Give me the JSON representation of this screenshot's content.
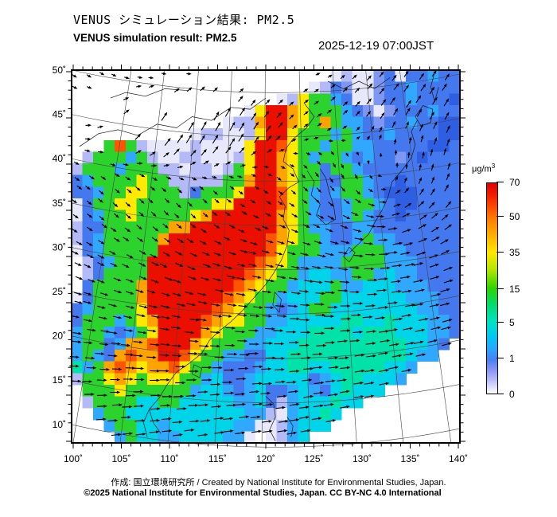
{
  "header": {
    "title_jp": "VENUS シミュレーション結果: PM2.5",
    "title_en": "VENUS simulation result: PM2.5",
    "timestamp": "2025-12-19 07:00JST"
  },
  "footer": {
    "credit": "作成: 国立環境研究所 / Created by National Institute for Environmental Studies, Japan.",
    "license": "©2025 National Institute for Environmental Studies, Japan. CC BY-NC 4.0 International"
  },
  "colorbar": {
    "unit_prefix": "μg/m",
    "unit_sup": "3",
    "ticks": [
      {
        "label": "70",
        "f": 0.0
      },
      {
        "label": "50",
        "f": 0.162
      },
      {
        "label": "35",
        "f": 0.332
      },
      {
        "label": "15",
        "f": 0.502
      },
      {
        "label": "5",
        "f": 0.66
      },
      {
        "label": "1",
        "f": 0.83
      },
      {
        "label": "0",
        "f": 1.0
      }
    ],
    "gradient": [
      [
        "0%",
        "#dd0300"
      ],
      [
        "6%",
        "#f32000"
      ],
      [
        "13%",
        "#ff5a00"
      ],
      [
        "17%",
        "#ff7e00"
      ],
      [
        "25%",
        "#ffb200"
      ],
      [
        "33%",
        "#ffe800"
      ],
      [
        "41%",
        "#b4e600"
      ],
      [
        "50%",
        "#2ed400"
      ],
      [
        "58%",
        "#00dc72"
      ],
      [
        "66%",
        "#00e2c4"
      ],
      [
        "73%",
        "#00c8f4"
      ],
      [
        "79%",
        "#2ba4ff"
      ],
      [
        "84%",
        "#4a80f2"
      ],
      [
        "89%",
        "#8a97f3"
      ],
      [
        "94%",
        "#bcc0f8"
      ],
      [
        "100%",
        "#ffffff"
      ]
    ]
  },
  "axes": {
    "lat_labels": [
      "50˚",
      "45˚",
      "40˚",
      "35˚",
      "30˚",
      "25˚",
      "20˚",
      "15˚",
      "10˚"
    ],
    "lon_labels": [
      "100˚",
      "105˚",
      "110˚",
      "115˚",
      "120˚",
      "125˚",
      "130˚",
      "135˚",
      "140˚"
    ]
  },
  "chart_data": {
    "type": "heatmap",
    "variable": "PM2.5 concentration with wind vectors",
    "unit": "μg/m³",
    "datetime": "2025-12-19 07:00JST",
    "lon_range": [
      100,
      140
    ],
    "lat_range": [
      10,
      50
    ],
    "colorbar_tick_values": [
      70,
      50,
      35,
      15,
      5,
      1,
      0
    ],
    "notes": "Very high PM2.5 (>70) over eastern China; green/moderate over Korea and Japan; low blue values over Sea of Japan and Pacific with cyclonic vortex east of Japan; turquoise band across southern seas; white = outside model domain",
    "heat_grid": {
      "cols": 36,
      "rows": 32,
      "palette": {
        ".": "#ffffff",
        "p": "#e7e9fb",
        "l": "#b3baf7",
        "s": "#7e97f3",
        "b": "#4478ef",
        "B": "#2e5fe3",
        "c": "#2fa8fe",
        "C": "#00d4e8",
        "t": "#00e2a8",
        "g": "#2cd32c",
        "G": "#a6e800",
        "y": "#ffe900",
        "o": "#ffa300",
        "O": "#ff5400",
        "r": "#eb0f00"
      },
      "cells": [
        "........................plppsbpbbcbb",
        "......................plbsppsbbcbbbb",
        "...................plyggcbppsbbcbbbB",
        "................pyrroygggcbspsbbbcbb",
        "..............pllorroygogccbsbbcbbBB",
        "...........pllpplyrrygggcgcbbcbbbbBB",
        "...gOglpppplppppyrrOyggcggccbbbbbBBb",
        ".lgggcglppllppplyrroygcggcbcbbsbBbbb",
        "lgggcgggllpllplgyrroyggbggcbbbbbbbbb",
        "bcggggygglllllggorroyggbbggcbbBbbbbb",
        "bbcggyyggglbgggyrrrOygcbcggcbBBBbbbb",
        "pbggyygggggggyyrrrrOygcbbcggcbBBbbbb",
        "pbcggygggggyorrrrrroygcbbcgcbbBbbbbb",
        "lbbggggggoorrrrrrrroygccbbccbbbbbbbb",
        "lbcgggggorrrrrrrrrOoyggcbbcgccbbbbbb",
        "pbcgggggrrrrrrrrrrOygggcccgggccbbbbb",
        ".lbcgggrrrrrrrrrrOoygccccggggcccbbbb",
        ".lbggggrrrrrrrrrOoyggcCCccggcCccbbbb",
        ".bggggorrrrrrrrOoyggcCCCgccCCCcccbbb",
        "pbggggorrrrrrrOoyggcCCCggCCCCCCcccbb",
        "bcggggyrrrrrrOoyggcbcCggCCCCCCCCccbb",
        "bgggcgyorrrrOoyyggccCCCCCttCCtCCCccb",
        "cggcbcgyrrrroygggccCCCttttCtttCCCccb",
        "cggbcooOrrroygggccCCCttttttttttCCcb.",
        "cgcboOoorrOyggccbbCCtttttttttttCcc..",
        "tcgoOoyooOyggcbbbcCCttCCtttttCCc....",
        "lggyoygyyyggcCbbcCCCCCbcCttCCCc.....",
        ".gggyggggggcCCcbcCbbcCcbCtCCC.......",
        ".lggggCCggCCCCCccCblcCCCtCC.........",
        "..cggCCCCCCCCCCCcclpcCCtC...........",
        "...cggCCcCCCCCCccpplcCCC............",
        "....cgCCccCCCCccp.plcC.............."
      ]
    },
    "wind_field": {
      "spacing": 16,
      "base": {
        "u": 0.35,
        "shear": 1.0,
        "v_south": -0.25
      },
      "vortices": [
        {
          "x": 0.82,
          "y": 0.33,
          "k": 0.13,
          "eps": 0.02
        },
        {
          "x": 0.38,
          "y": 0.42,
          "k": 0.045,
          "eps": 0.03
        }
      ],
      "jets": [
        {
          "x": 0.33,
          "y": 0.15,
          "sx": 0.22,
          "sy": 0.1,
          "u": 0.45,
          "v": -1.3
        },
        {
          "x": 0.85,
          "y": 0.08,
          "sx": 0.25,
          "sy": 0.12,
          "u": 0.5,
          "v": -0.5
        }
      ]
    },
    "coastlines": [
      [
        [
          0.02,
          0.205
        ],
        [
          0.07,
          0.17
        ],
        [
          0.12,
          0.16
        ],
        [
          0.17,
          0.175
        ],
        [
          0.22,
          0.145
        ],
        [
          0.27,
          0.155
        ],
        [
          0.31,
          0.125
        ],
        [
          0.36,
          0.135
        ],
        [
          0.41,
          0.1
        ],
        [
          0.46,
          0.105
        ],
        [
          0.5,
          0.075
        ]
      ],
      [
        [
          0.1,
          0.075
        ],
        [
          0.14,
          0.06
        ],
        [
          0.19,
          0.07
        ],
        [
          0.24,
          0.05
        ],
        [
          0.3,
          0.055
        ]
      ],
      [
        [
          0.66,
          0.03
        ],
        [
          0.7,
          0.05
        ],
        [
          0.74,
          0.03
        ],
        [
          0.78,
          0.05
        ],
        [
          0.82,
          0.02
        ]
      ],
      [
        [
          0.6,
          0.09
        ],
        [
          0.625,
          0.125
        ],
        [
          0.605,
          0.155
        ],
        [
          0.57,
          0.185
        ],
        [
          0.552,
          0.21
        ],
        [
          0.545,
          0.245
        ],
        [
          0.57,
          0.265
        ],
        [
          0.585,
          0.3
        ],
        [
          0.56,
          0.315
        ],
        [
          0.535,
          0.34
        ],
        [
          0.55,
          0.365
        ],
        [
          0.545,
          0.4
        ],
        [
          0.56,
          0.43
        ],
        [
          0.555,
          0.47
        ],
        [
          0.54,
          0.51
        ],
        [
          0.52,
          0.545
        ],
        [
          0.5,
          0.575
        ],
        [
          0.47,
          0.61
        ],
        [
          0.44,
          0.645
        ],
        [
          0.41,
          0.675
        ],
        [
          0.38,
          0.7
        ],
        [
          0.355,
          0.725
        ],
        [
          0.335,
          0.76
        ],
        [
          0.305,
          0.785
        ],
        [
          0.27,
          0.81
        ],
        [
          0.245,
          0.845
        ],
        [
          0.225,
          0.88
        ],
        [
          0.2,
          0.91
        ],
        [
          0.21,
          0.945
        ],
        [
          0.23,
          0.975
        ]
      ],
      [
        [
          0.607,
          0.27
        ],
        [
          0.625,
          0.3
        ],
        [
          0.617,
          0.335
        ],
        [
          0.64,
          0.36
        ],
        [
          0.63,
          0.39
        ],
        [
          0.655,
          0.415
        ],
        [
          0.68,
          0.4
        ],
        [
          0.675,
          0.365
        ],
        [
          0.663,
          0.325
        ],
        [
          0.655,
          0.29
        ],
        [
          0.64,
          0.265
        ]
      ],
      [
        [
          0.715,
          0.49
        ],
        [
          0.74,
          0.465
        ],
        [
          0.765,
          0.44
        ],
        [
          0.78,
          0.41
        ],
        [
          0.8,
          0.375
        ],
        [
          0.815,
          0.34
        ],
        [
          0.825,
          0.3
        ],
        [
          0.85,
          0.27
        ],
        [
          0.875,
          0.235
        ],
        [
          0.885,
          0.2
        ],
        [
          0.875,
          0.165
        ],
        [
          0.89,
          0.135
        ]
      ],
      [
        [
          0.885,
          0.125
        ],
        [
          0.905,
          0.095
        ],
        [
          0.93,
          0.105
        ],
        [
          0.925,
          0.14
        ],
        [
          0.9,
          0.15
        ],
        [
          0.885,
          0.125
        ]
      ],
      [
        [
          0.7,
          0.5
        ],
        [
          0.715,
          0.475
        ],
        [
          0.73,
          0.49
        ],
        [
          0.715,
          0.515
        ],
        [
          0.7,
          0.5
        ]
      ],
      [
        [
          0.935,
          0.005
        ],
        [
          0.925,
          0.045
        ],
        [
          0.935,
          0.085
        ],
        [
          0.945,
          0.045
        ]
      ],
      [
        [
          0.523,
          0.595
        ],
        [
          0.54,
          0.615
        ],
        [
          0.535,
          0.65
        ],
        [
          0.518,
          0.63
        ],
        [
          0.523,
          0.595
        ]
      ],
      [
        [
          0.315,
          0.79
        ],
        [
          0.335,
          0.8
        ],
        [
          0.33,
          0.825
        ],
        [
          0.31,
          0.815
        ],
        [
          0.315,
          0.79
        ]
      ],
      [
        [
          0.5,
          0.875
        ],
        [
          0.52,
          0.895
        ],
        [
          0.525,
          0.93
        ],
        [
          0.51,
          0.965
        ],
        [
          0.525,
          0.995
        ]
      ],
      [
        [
          0.555,
          0.93
        ],
        [
          0.57,
          0.955
        ],
        [
          0.565,
          0.985
        ]
      ],
      [
        [
          0.2,
          0.91
        ],
        [
          0.185,
          0.945
        ],
        [
          0.195,
          0.985
        ]
      ]
    ],
    "graticule": {
      "meridian_bottom_fracs": [
        0.004,
        0.125,
        0.248,
        0.369,
        0.49,
        0.613,
        0.734,
        0.854,
        0.977
      ],
      "apex": [
        254,
        -1148
      ]
    }
  }
}
